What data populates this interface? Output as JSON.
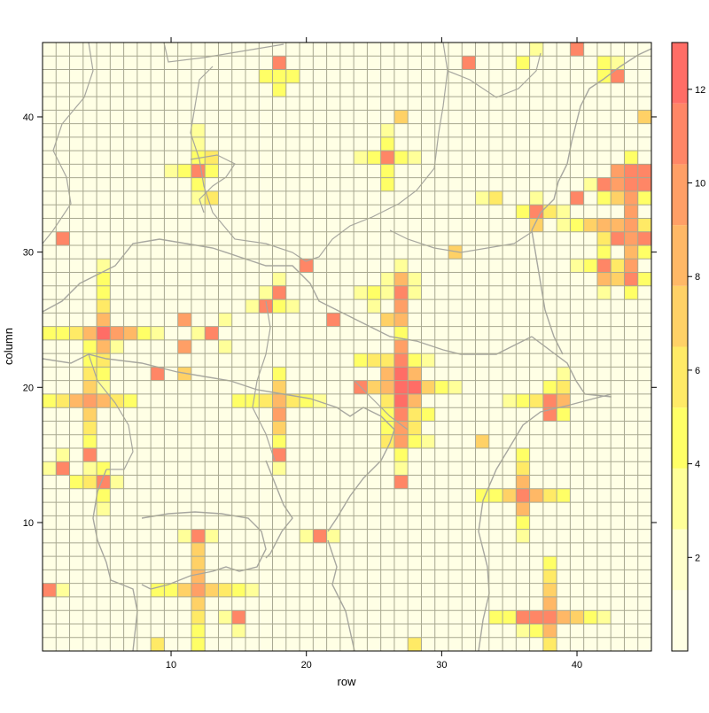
{
  "chart_data": {
    "type": "heatmap",
    "xlabel": "row",
    "ylabel": "column",
    "x_range": [
      0.5,
      45.5
    ],
    "y_range": [
      0.5,
      45.5
    ],
    "x_ticks": [
      10,
      20,
      30,
      40
    ],
    "y_ticks": [
      10,
      20,
      30,
      40
    ],
    "colorbar": {
      "range": [
        0,
        13
      ],
      "ticks": [
        2,
        4,
        6,
        8,
        10,
        12
      ],
      "colors": [
        "#ffffe5",
        "#ffffcc",
        "#ffff99",
        "#ffff66",
        "#ffea66",
        "#ffd166",
        "#ffb866",
        "#ff9f66",
        "#ff8666",
        "#ff6d66"
      ]
    },
    "background_value": 0.3,
    "grid": true,
    "cells": [
      [
        5,
        29,
        3
      ],
      [
        5,
        28,
        4
      ],
      [
        5,
        27,
        5
      ],
      [
        5,
        26,
        6
      ],
      [
        5,
        25,
        8
      ],
      [
        5,
        24,
        12
      ],
      [
        5,
        23,
        8
      ],
      [
        5,
        22,
        6
      ],
      [
        5,
        21,
        4
      ],
      [
        5,
        20,
        3
      ],
      [
        1,
        24,
        4
      ],
      [
        2,
        24,
        5
      ],
      [
        3,
        24,
        6
      ],
      [
        4,
        24,
        8
      ],
      [
        6,
        24,
        10
      ],
      [
        7,
        24,
        8
      ],
      [
        8,
        24,
        5
      ],
      [
        9,
        24,
        3
      ],
      [
        4,
        23,
        4
      ],
      [
        4,
        22,
        5
      ],
      [
        4,
        21,
        6
      ],
      [
        4,
        20,
        7
      ],
      [
        4,
        19,
        10
      ],
      [
        4,
        18,
        7
      ],
      [
        4,
        17,
        6
      ],
      [
        4,
        16,
        5
      ],
      [
        4,
        15,
        11
      ],
      [
        4,
        14,
        3
      ],
      [
        1,
        19,
        5
      ],
      [
        2,
        19,
        6
      ],
      [
        3,
        19,
        8
      ],
      [
        5,
        19,
        8
      ],
      [
        6,
        19,
        6
      ],
      [
        7,
        19,
        4
      ],
      [
        6,
        23,
        3
      ],
      [
        5,
        13,
        11
      ],
      [
        5,
        14,
        4
      ],
      [
        5,
        12,
        4
      ],
      [
        4,
        13,
        6
      ],
      [
        3,
        13,
        4
      ],
      [
        6,
        13,
        3
      ],
      [
        5,
        11,
        3
      ],
      [
        2,
        14,
        11
      ],
      [
        1,
        14,
        3
      ],
      [
        2,
        15,
        3
      ],
      [
        1,
        5,
        11
      ],
      [
        2,
        5,
        3
      ],
      [
        2,
        31,
        11
      ],
      [
        12,
        36,
        11
      ],
      [
        12,
        35,
        4
      ],
      [
        12,
        37,
        4
      ],
      [
        11,
        36,
        4
      ],
      [
        13,
        36,
        5
      ],
      [
        10,
        36,
        3
      ],
      [
        13,
        37,
        6
      ],
      [
        12,
        34,
        3
      ],
      [
        13,
        34,
        6
      ],
      [
        12,
        38,
        3
      ],
      [
        12,
        39,
        3
      ],
      [
        11,
        25,
        10
      ],
      [
        11,
        23,
        10
      ],
      [
        11,
        21,
        7
      ],
      [
        9,
        21,
        11
      ],
      [
        13,
        24,
        11
      ],
      [
        12,
        24,
        3
      ],
      [
        14,
        25,
        3
      ],
      [
        14,
        23,
        3
      ],
      [
        17,
        26,
        11
      ],
      [
        18,
        27,
        11
      ],
      [
        18,
        26,
        5
      ],
      [
        16,
        26,
        3
      ],
      [
        18,
        28,
        3
      ],
      [
        17,
        27,
        3
      ],
      [
        19,
        26,
        3
      ],
      [
        18,
        44,
        11
      ],
      [
        18,
        43,
        4
      ],
      [
        17,
        43,
        4
      ],
      [
        19,
        43,
        4
      ],
      [
        18,
        42,
        4
      ],
      [
        18,
        21,
        4
      ],
      [
        18,
        20,
        7
      ],
      [
        18,
        19,
        8
      ],
      [
        18,
        18,
        10
      ],
      [
        18,
        17,
        7
      ],
      [
        18,
        16,
        5
      ],
      [
        18,
        15,
        11
      ],
      [
        18,
        14,
        3
      ],
      [
        15,
        19,
        4
      ],
      [
        16,
        19,
        5
      ],
      [
        17,
        19,
        6
      ],
      [
        19,
        19,
        6
      ],
      [
        20,
        19,
        4
      ],
      [
        21,
        19,
        3
      ],
      [
        20,
        29,
        11
      ],
      [
        22,
        25,
        11
      ],
      [
        27,
        28,
        8
      ],
      [
        27,
        27,
        11
      ],
      [
        27,
        26,
        10
      ],
      [
        27,
        25,
        8
      ],
      [
        27,
        24,
        5
      ],
      [
        27,
        23,
        10
      ],
      [
        27,
        22,
        11
      ],
      [
        27,
        21,
        12
      ],
      [
        27,
        20,
        12
      ],
      [
        27,
        19,
        12
      ],
      [
        27,
        18,
        11
      ],
      [
        27,
        17,
        10
      ],
      [
        27,
        16,
        10
      ],
      [
        27,
        15,
        5
      ],
      [
        27,
        13,
        11
      ],
      [
        27,
        14,
        3
      ],
      [
        26,
        25,
        7
      ],
      [
        26,
        27,
        3
      ],
      [
        28,
        27,
        3
      ],
      [
        25,
        27,
        5
      ],
      [
        24,
        27,
        3
      ],
      [
        25,
        26,
        3
      ],
      [
        24,
        20,
        11
      ],
      [
        25,
        20,
        7
      ],
      [
        26,
        20,
        8
      ],
      [
        28,
        20,
        12
      ],
      [
        29,
        20,
        7
      ],
      [
        30,
        20,
        5
      ],
      [
        31,
        20,
        3
      ],
      [
        26,
        21,
        8
      ],
      [
        26,
        22,
        6
      ],
      [
        25,
        22,
        6
      ],
      [
        24,
        22,
        4
      ],
      [
        28,
        21,
        8
      ],
      [
        28,
        22,
        5
      ],
      [
        29,
        22,
        3
      ],
      [
        26,
        19,
        6
      ],
      [
        28,
        19,
        8
      ],
      [
        29,
        18,
        5
      ],
      [
        28,
        18,
        6
      ],
      [
        26,
        18,
        5
      ],
      [
        26,
        17,
        4
      ],
      [
        26,
        16,
        6
      ],
      [
        28,
        17,
        6
      ],
      [
        28,
        16,
        5
      ],
      [
        29,
        16,
        3
      ],
      [
        27,
        29,
        3
      ],
      [
        26,
        28,
        3
      ],
      [
        28,
        28,
        3
      ],
      [
        26,
        37,
        11
      ],
      [
        26,
        38,
        4
      ],
      [
        26,
        36,
        4
      ],
      [
        26,
        35,
        4
      ],
      [
        25,
        37,
        4
      ],
      [
        27,
        37,
        4
      ],
      [
        24,
        37,
        3
      ],
      [
        28,
        37,
        3
      ],
      [
        26,
        39,
        3
      ],
      [
        27,
        40,
        7
      ],
      [
        32,
        44,
        11
      ],
      [
        31,
        30,
        7
      ],
      [
        33,
        16,
        7
      ],
      [
        36,
        12,
        11
      ],
      [
        36,
        13,
        8
      ],
      [
        36,
        14,
        6
      ],
      [
        36,
        15,
        4
      ],
      [
        36,
        11,
        8
      ],
      [
        36,
        10,
        5
      ],
      [
        36,
        9,
        3
      ],
      [
        33,
        12,
        4
      ],
      [
        34,
        12,
        5
      ],
      [
        35,
        12,
        7
      ],
      [
        37,
        12,
        8
      ],
      [
        38,
        12,
        6
      ],
      [
        39,
        12,
        4
      ],
      [
        38,
        7,
        4
      ],
      [
        38,
        6,
        6
      ],
      [
        38,
        5,
        7
      ],
      [
        38,
        4,
        8
      ],
      [
        38,
        3,
        11
      ],
      [
        38,
        2,
        8
      ],
      [
        38,
        1,
        6
      ],
      [
        37,
        2,
        4
      ],
      [
        34,
        3,
        4
      ],
      [
        35,
        3,
        5
      ],
      [
        36,
        3,
        11
      ],
      [
        37,
        3,
        11
      ],
      [
        39,
        3,
        8
      ],
      [
        40,
        3,
        7
      ],
      [
        41,
        3,
        5
      ],
      [
        42,
        3,
        3
      ],
      [
        36,
        2,
        3
      ],
      [
        38,
        18,
        11
      ],
      [
        38,
        19,
        11
      ],
      [
        39,
        19,
        8
      ],
      [
        37,
        19,
        6
      ],
      [
        36,
        19,
        4
      ],
      [
        35,
        19,
        3
      ],
      [
        39,
        20,
        6
      ],
      [
        39,
        21,
        3
      ],
      [
        38,
        20,
        5
      ],
      [
        39,
        18,
        5
      ],
      [
        44,
        36,
        11
      ],
      [
        44,
        35,
        11
      ],
      [
        44,
        34,
        10
      ],
      [
        44,
        33,
        10
      ],
      [
        44,
        32,
        10
      ],
      [
        44,
        31,
        10
      ],
      [
        44,
        30,
        9
      ],
      [
        44,
        29,
        10
      ],
      [
        44,
        28,
        11
      ],
      [
        44,
        27,
        5
      ],
      [
        44,
        37,
        4
      ],
      [
        43,
        36,
        10
      ],
      [
        43,
        35,
        10
      ],
      [
        43,
        34,
        7
      ],
      [
        43,
        32,
        8
      ],
      [
        43,
        31,
        11
      ],
      [
        45,
        36,
        11
      ],
      [
        45,
        35,
        11
      ],
      [
        45,
        34,
        5
      ],
      [
        45,
        32,
        6
      ],
      [
        45,
        31,
        11
      ],
      [
        45,
        30,
        5
      ],
      [
        42,
        35,
        11
      ],
      [
        42,
        34,
        4
      ],
      [
        41,
        35,
        3
      ],
      [
        42,
        32,
        8
      ],
      [
        42,
        31,
        6
      ],
      [
        42,
        30,
        5
      ],
      [
        42,
        29,
        11
      ],
      [
        42,
        28,
        8
      ],
      [
        42,
        27,
        3
      ],
      [
        41,
        29,
        4
      ],
      [
        40,
        29,
        3
      ],
      [
        41,
        32,
        7
      ],
      [
        40,
        32,
        4
      ],
      [
        43,
        29,
        6
      ],
      [
        43,
        28,
        7
      ],
      [
        45,
        28,
        4
      ],
      [
        37,
        33,
        11
      ],
      [
        36,
        33,
        4
      ],
      [
        38,
        33,
        6
      ],
      [
        37,
        32,
        7
      ],
      [
        37,
        34,
        3
      ],
      [
        34,
        34,
        6
      ],
      [
        33,
        34,
        3
      ],
      [
        39,
        33,
        3
      ],
      [
        40,
        34,
        11
      ],
      [
        39,
        32,
        3
      ],
      [
        40,
        45,
        11
      ],
      [
        37,
        45,
        3
      ],
      [
        36,
        44,
        4
      ],
      [
        42,
        44,
        4
      ],
      [
        43,
        43,
        11
      ],
      [
        43,
        44,
        3
      ],
      [
        42,
        43,
        4
      ],
      [
        45,
        40,
        7
      ],
      [
        9,
        1,
        6
      ],
      [
        9,
        5,
        4
      ],
      [
        10,
        5,
        5
      ],
      [
        11,
        5,
        7
      ],
      [
        13,
        5,
        7
      ],
      [
        14,
        5,
        6
      ],
      [
        15,
        5,
        4
      ],
      [
        16,
        5,
        3
      ],
      [
        12,
        9,
        11
      ],
      [
        12,
        8,
        7
      ],
      [
        12,
        7,
        7
      ],
      [
        12,
        6,
        8
      ],
      [
        12,
        5,
        10
      ],
      [
        12,
        4,
        7
      ],
      [
        12,
        3,
        6
      ],
      [
        12,
        2,
        5
      ],
      [
        12,
        1,
        4
      ],
      [
        11,
        9,
        3
      ],
      [
        13,
        9,
        3
      ],
      [
        15,
        3,
        11
      ],
      [
        15,
        2,
        3
      ],
      [
        14,
        3,
        3
      ],
      [
        21,
        9,
        11
      ],
      [
        22,
        9,
        3
      ],
      [
        20,
        9,
        3
      ],
      [
        28,
        1,
        6
      ]
    ]
  }
}
